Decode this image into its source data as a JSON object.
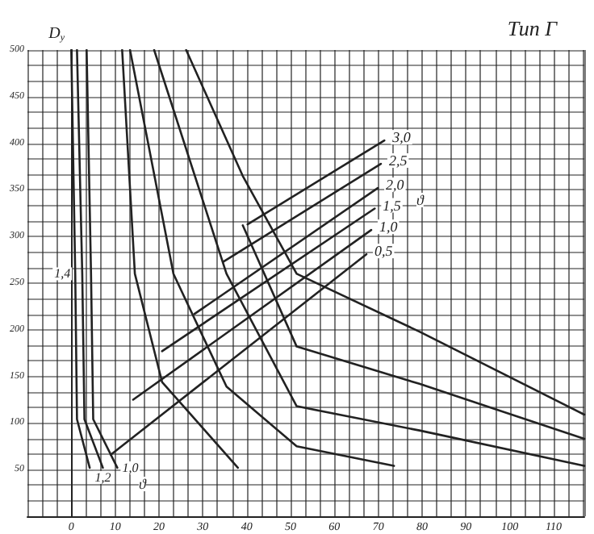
{
  "chart_data": {
    "type": "line",
    "title": "Тип Г",
    "ylabel": "D$_{y}$",
    "xlim": [
      -10,
      117
    ],
    "xticks": [
      0,
      10,
      20,
      30,
      40,
      50,
      60,
      70,
      80,
      90,
      100,
      110
    ],
    "ylim": [
      0,
      500
    ],
    "yticks": [
      50,
      100,
      150,
      200,
      250,
      300,
      350,
      400,
      450,
      500
    ],
    "grid": true,
    "legend": false,
    "marker": "none",
    "line_style": "solid",
    "annotations": [
      "ϑ",
      "ϑ"
    ],
    "series": [
      {
        "name": "1,4",
        "color": "#222222",
        "x": [
          0,
          0.9,
          1.3,
          4.2
        ],
        "values": [
          500,
          260,
          104,
          52
        ]
      },
      {
        "name": "1,2",
        "color": "#222222",
        "x": [
          1.3,
          2.5,
          3,
          7.2
        ],
        "values": [
          500,
          260,
          104,
          52
        ]
      },
      {
        "name": "1,0",
        "color": "#222222",
        "x": [
          3.5,
          4.5,
          5,
          10.5
        ],
        "values": [
          500,
          260,
          104,
          52
        ]
      },
      {
        "color": "#222222",
        "x": [
          11.6,
          14.5,
          20.7,
          38
        ],
        "values": [
          500,
          260,
          144,
          52
        ]
      },
      {
        "color": "#222222",
        "x": [
          13.4,
          23.3,
          35.4,
          51.4,
          73.6
        ],
        "values": [
          500,
          260,
          139,
          75,
          54
        ]
      },
      {
        "color": "#222222",
        "x": [
          18.9,
          35.4,
          51.4,
          79.4,
          117
        ],
        "values": [
          500,
          260,
          118,
          92,
          54
        ]
      },
      {
        "color": "#222222",
        "x": [
          39.1,
          51.4,
          79.4,
          117
        ],
        "values": [
          312,
          182,
          142,
          83
        ]
      },
      {
        "color": "#222222",
        "x": [
          26.2,
          39.1,
          51.4,
          79.4,
          117
        ],
        "values": [
          500,
          365,
          260,
          198,
          109
        ]
      },
      {
        "name": "3,0",
        "color": "#222222",
        "x": [
          40.2,
          71.4
        ],
        "values": [
          313,
          403
        ]
      },
      {
        "name": "2,5",
        "color": "#222222",
        "x": [
          34.7,
          70.6
        ],
        "values": [
          273,
          378
        ]
      },
      {
        "name": "2,0",
        "color": "#222222",
        "x": [
          28.1,
          69.9
        ],
        "values": [
          217,
          352
        ]
      },
      {
        "name": "1,5",
        "color": "#222222",
        "x": [
          20.7,
          69.2
        ],
        "values": [
          177,
          330
        ]
      },
      {
        "name": "1,0",
        "color": "#222222",
        "x": [
          14.1,
          68.4
        ],
        "values": [
          125,
          307
        ]
      },
      {
        "name": "0,5",
        "color": "#222222",
        "x": [
          9,
          67.3
        ],
        "values": [
          66,
          281
        ]
      }
    ]
  }
}
